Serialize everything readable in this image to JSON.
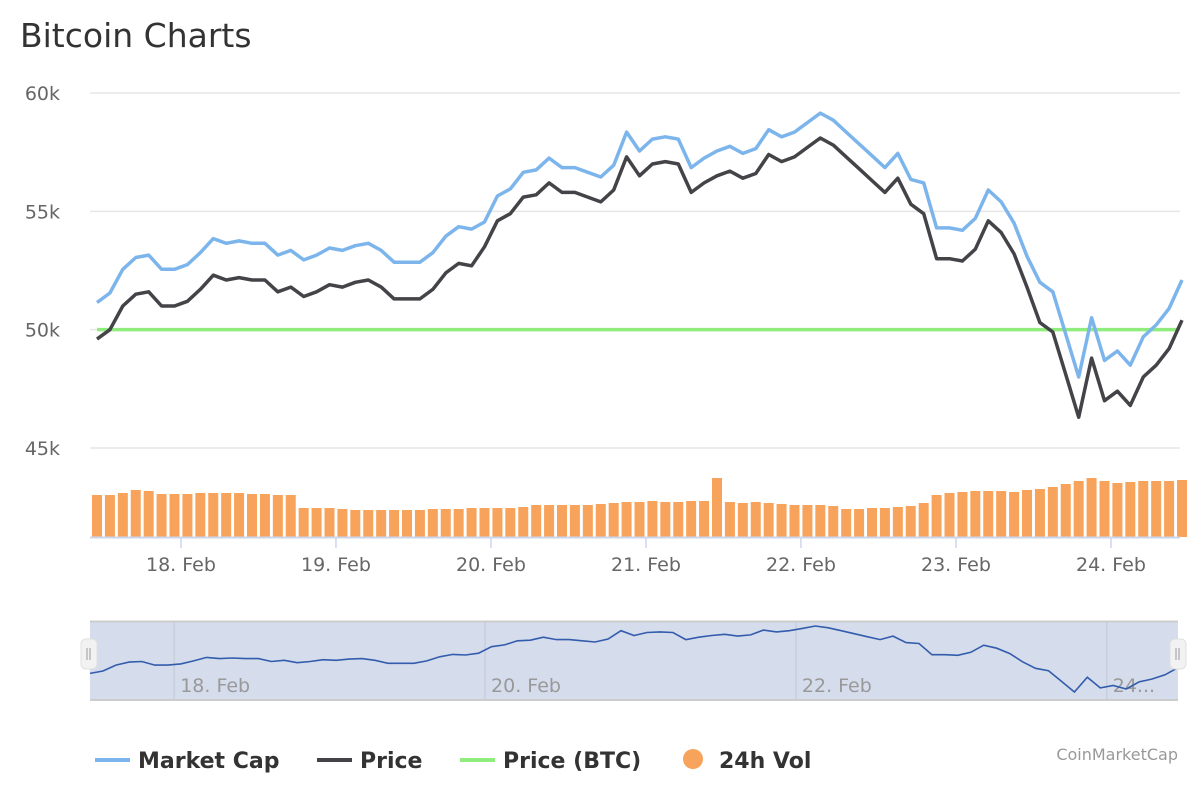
{
  "chart_data": {
    "type": "line",
    "title": "Bitcoin Charts",
    "credit": "CoinMarketCap",
    "y_ticks": [
      "45k",
      "50k",
      "55k",
      "60k"
    ],
    "y_tick_values": [
      45000,
      50000,
      55000,
      60000
    ],
    "ylim": [
      45000,
      60000
    ],
    "x_ticks": [
      "18. Feb",
      "19. Feb",
      "20. Feb",
      "21. Feb",
      "22. Feb",
      "23. Feb",
      "24. Feb"
    ],
    "navigator_ticks": [
      "18. Feb",
      "20. Feb",
      "22. Feb",
      "24..."
    ],
    "grid": true,
    "legend_position": "bottom-left",
    "x": [
      "17 Feb 11:00",
      "17 Feb 13:00",
      "17 Feb 15:00",
      "17 Feb 17:00",
      "17 Feb 19:00",
      "17 Feb 21:00",
      "17 Feb 23:00",
      "18 Feb 01:00",
      "18 Feb 03:00",
      "18 Feb 05:00",
      "18 Feb 07:00",
      "18 Feb 09:00",
      "18 Feb 11:00",
      "18 Feb 13:00",
      "18 Feb 15:00",
      "18 Feb 17:00",
      "18 Feb 19:00",
      "18 Feb 21:00",
      "18 Feb 23:00",
      "19 Feb 01:00",
      "19 Feb 03:00",
      "19 Feb 05:00",
      "19 Feb 07:00",
      "19 Feb 09:00",
      "19 Feb 11:00",
      "19 Feb 13:00",
      "19 Feb 15:00",
      "19 Feb 17:00",
      "19 Feb 19:00",
      "19 Feb 21:00",
      "19 Feb 23:00",
      "20 Feb 01:00",
      "20 Feb 03:00",
      "20 Feb 05:00",
      "20 Feb 07:00",
      "20 Feb 09:00",
      "20 Feb 11:00",
      "20 Feb 13:00",
      "20 Feb 15:00",
      "20 Feb 17:00",
      "20 Feb 19:00",
      "20 Feb 21:00",
      "20 Feb 23:00",
      "21 Feb 01:00",
      "21 Feb 03:00",
      "21 Feb 05:00",
      "21 Feb 07:00",
      "21 Feb 09:00",
      "21 Feb 11:00",
      "21 Feb 13:00",
      "21 Feb 15:00",
      "21 Feb 17:00",
      "21 Feb 19:00",
      "21 Feb 21:00",
      "21 Feb 23:00",
      "22 Feb 01:00",
      "22 Feb 03:00",
      "22 Feb 05:00",
      "22 Feb 07:00",
      "22 Feb 09:00",
      "22 Feb 11:00",
      "22 Feb 13:00",
      "22 Feb 15:00",
      "22 Feb 17:00",
      "22 Feb 19:00",
      "22 Feb 21:00",
      "22 Feb 23:00",
      "23 Feb 01:00",
      "23 Feb 03:00",
      "23 Feb 05:00",
      "23 Feb 07:00",
      "23 Feb 09:00",
      "23 Feb 11:00",
      "23 Feb 13:00",
      "23 Feb 15:00",
      "23 Feb 17:00",
      "23 Feb 19:00",
      "23 Feb 21:00",
      "23 Feb 23:00",
      "24 Feb 01:00",
      "24 Feb 03:00",
      "24 Feb 05:00",
      "24 Feb 07:00",
      "24 Feb 09:00",
      "24 Feb 11:00"
    ],
    "series": [
      {
        "name": "Market Cap",
        "color": "#7cb5ec",
        "values": [
          51150,
          51550,
          52550,
          53050,
          53150,
          52550,
          52550,
          52750,
          53250,
          53850,
          53650,
          53750,
          53650,
          53650,
          53150,
          53350,
          52950,
          53150,
          53450,
          53350,
          53550,
          53650,
          53350,
          52850,
          52850,
          52850,
          53250,
          53950,
          54350,
          54250,
          54550,
          55650,
          55950,
          56650,
          56750,
          57250,
          56850,
          56850,
          56650,
          56450,
          56950,
          58350,
          57550,
          58050,
          58150,
          58050,
          56850,
          57250,
          57550,
          57750,
          57450,
          57650,
          58450,
          58150,
          58350,
          58750,
          59150,
          58850,
          58350,
          57850,
          57350,
          56850,
          57450,
          56350,
          56200,
          54300,
          54300,
          54200,
          54700,
          55900,
          55400,
          54500,
          53100,
          52000,
          51600,
          49800,
          48000,
          50500,
          48700,
          49100,
          48500,
          49700,
          50200,
          50900,
          52100
        ]
      },
      {
        "name": "Price",
        "color": "#434348",
        "values": [
          49600,
          50000,
          51000,
          51500,
          51600,
          51000,
          51000,
          51200,
          51700,
          52300,
          52100,
          52200,
          52100,
          52100,
          51600,
          51800,
          51400,
          51600,
          51900,
          51800,
          52000,
          52100,
          51800,
          51300,
          51300,
          51300,
          51700,
          52400,
          52800,
          52700,
          53500,
          54600,
          54900,
          55600,
          55700,
          56200,
          55800,
          55800,
          55600,
          55400,
          55900,
          57300,
          56500,
          57000,
          57100,
          57000,
          55800,
          56200,
          56500,
          56700,
          56400,
          56600,
          57400,
          57100,
          57300,
          57700,
          58100,
          57800,
          57300,
          56800,
          56300,
          55800,
          56400,
          55300,
          54900,
          53000,
          53000,
          52900,
          53400,
          54600,
          54100,
          53200,
          51800,
          50300,
          49900,
          48100,
          46300,
          48800,
          47000,
          47400,
          46800,
          48000,
          48500,
          49200,
          50400
        ]
      },
      {
        "name": "Price (BTC)",
        "color": "#90ed7d",
        "values_constant": 50000
      },
      {
        "name": "24h Vol",
        "color": "#f7a35c",
        "type": "column",
        "values": [
          42,
          42,
          44,
          47,
          46,
          43,
          43,
          43,
          44,
          44,
          44,
          44,
          43,
          43,
          42,
          42,
          29,
          29,
          29,
          28,
          27,
          27,
          27,
          27,
          27,
          27,
          28,
          28,
          28,
          29,
          29,
          29,
          29,
          30,
          32,
          32,
          32,
          32,
          32,
          33,
          34,
          35,
          35,
          36,
          35,
          35,
          36,
          36,
          59,
          35,
          34,
          35,
          34,
          33,
          32,
          32,
          32,
          31,
          28,
          28,
          29,
          29,
          30,
          31,
          34,
          42,
          44,
          45,
          46,
          46,
          46,
          45,
          47,
          48,
          50,
          53,
          56,
          59,
          56,
          54,
          55,
          56,
          56,
          56,
          57
        ]
      }
    ]
  }
}
